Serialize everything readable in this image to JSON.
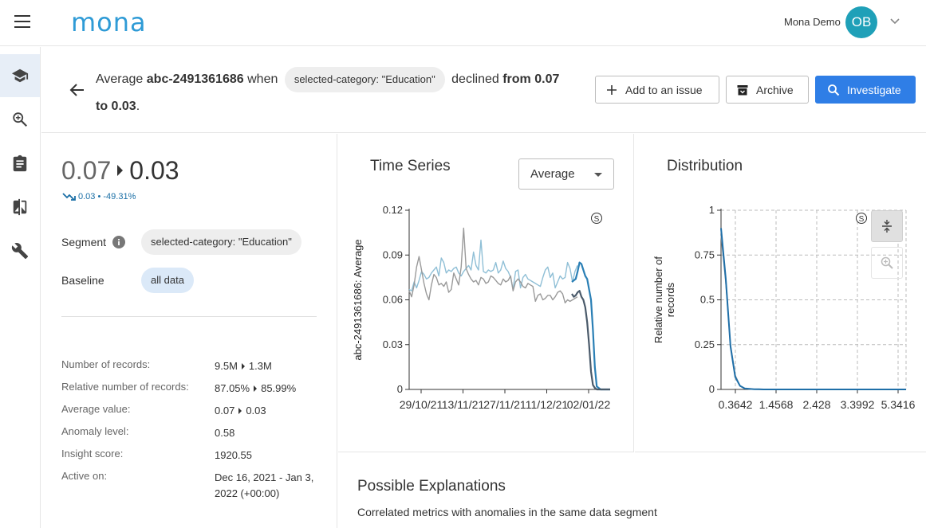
{
  "app": {
    "logo": "mona",
    "user_name": "Mona Demo",
    "user_initials": "OB"
  },
  "sidebar": {
    "items": [
      "insights",
      "search",
      "clipboard",
      "compare",
      "settings"
    ]
  },
  "header": {
    "text_prefix": "Average",
    "metric": "abc-2491361686",
    "text_when": "when",
    "segment_chip": "selected-category: \"Education\"",
    "text_declined": "declined",
    "text_from": "from 0.07",
    "text_to": "to 0.03",
    "text_period": ".",
    "buttons": {
      "add_issue": "Add to an issue",
      "archive": "Archive",
      "investigate": "Investigate"
    }
  },
  "summary": {
    "from_value": "0.07",
    "to_value": "0.03",
    "change_text": "0.03 • -49.31%",
    "segment_label": "Segment",
    "segment_value": "selected-category: \"Education\"",
    "baseline_label": "Baseline",
    "baseline_value": "all data",
    "stats": [
      {
        "label": "Number of records:",
        "from": "9.5M",
        "to": "1.3M"
      },
      {
        "label": "Relative number of records:",
        "from": "87.05%",
        "to": "85.99%"
      },
      {
        "label": "Average value:",
        "from": "0.07",
        "to": "0.03"
      },
      {
        "label": "Anomaly level:",
        "value": "0.58"
      },
      {
        "label": "Insight score:",
        "value": "1920.55"
      },
      {
        "label": "Active on:",
        "value": "Dec 16, 2021 - Jan 3, 2022 (+00:00)"
      }
    ]
  },
  "time_series": {
    "title": "Time Series",
    "select_value": "Average"
  },
  "distribution": {
    "title": "Distribution"
  },
  "explanations": {
    "title": "Possible Explanations",
    "subtitle": "Correlated metrics with anomalies in the same data segment"
  },
  "chart_data": [
    {
      "type": "line",
      "title": "Time Series",
      "xlabel": "",
      "ylabel": "abc-2491361686: Average",
      "ylim": [
        0,
        0.12
      ],
      "yticks": [
        "0",
        "0.03",
        "0.06",
        "0.09",
        "0.12"
      ],
      "xticks": [
        "29/10/21",
        "13/11/21",
        "27/11/21",
        "11/12/21",
        "02/01/22"
      ],
      "grid": false,
      "series": [
        {
          "color": "#8fbfd6",
          "values": [
            0.067,
            0.066,
            0.072,
            0.068,
            0.073,
            0.079,
            0.077,
            0.074,
            0.075,
            0.078,
            0.08,
            0.082,
            0.076,
            0.088,
            0.085,
            0.078,
            0.08,
            0.079,
            0.081,
            0.082,
            0.078,
            0.076,
            0.079,
            0.081,
            0.083,
            0.08,
            0.092,
            0.083,
            0.08,
            0.1,
            0.079,
            0.078,
            0.08,
            0.079,
            0.08,
            0.085,
            0.078,
            0.08,
            0.086,
            0.081,
            0.079,
            0.075,
            0.067,
            0.079,
            0.08,
            0.068,
            0.075,
            0.077,
            0.074,
            0.073,
            0.072,
            0.071,
            0.07,
            0.069,
            0.075,
            0.08,
            0.082,
            0.075,
            0.078,
            0.068,
            0.072,
            0.076,
            0.074,
            0.075,
            0.085,
            0.081,
            0.072,
            0.079,
            0.083
          ]
        },
        {
          "color": "#9a9a9a",
          "values": [
            0.066,
            0.062,
            0.07,
            0.082,
            0.089,
            0.08,
            0.071,
            0.064,
            0.06,
            0.07,
            0.077,
            0.075,
            0.07,
            0.071,
            0.069,
            0.072,
            0.065,
            0.067,
            0.078,
            0.074,
            0.07,
            0.082,
            0.108,
            0.081,
            0.077,
            0.074,
            0.072,
            0.073,
            0.07,
            0.075,
            0.074,
            0.071,
            0.072,
            0.076,
            0.075,
            0.073,
            0.071,
            0.07,
            0.074,
            0.072,
            0.073,
            0.076,
            0.066,
            0.072,
            0.074,
            0.072,
            0.069,
            0.068,
            0.071,
            0.07,
            0.069,
            0.059,
            0.063,
            0.064,
            0.06,
            0.061,
            0.063,
            0.063,
            0.06,
            0.062,
            0.065,
            0.066,
            0.064,
            0.058,
            0.06,
            0.059,
            0.06,
            0.061,
            0.062
          ]
        },
        {
          "color": "#2a7fb5",
          "values": [
            0.072,
            0.073,
            0.074,
            0.079,
            0.085,
            0.084,
            0.08,
            0.076,
            0.074,
            0.067,
            0.06,
            0.04,
            0.015,
            0.002,
            0.001,
            0,
            0,
            0,
            0,
            0,
            0
          ]
        },
        {
          "color": "#4a5a6a",
          "values": [
            0.064,
            0.062,
            0.063,
            0.065,
            0.066,
            0.062,
            0.06,
            0.055,
            0.045,
            0.03,
            0.012,
            0.003,
            0.001,
            0,
            0,
            0,
            0,
            0,
            0,
            0,
            0
          ]
        }
      ]
    },
    {
      "type": "line",
      "title": "Distribution",
      "xlabel": "",
      "ylabel": "Relative number of records",
      "ylim": [
        0,
        1
      ],
      "yticks": [
        "0",
        "0.25",
        "0.5",
        "0.75",
        "1"
      ],
      "xticks": [
        "0.3642",
        "1.4568",
        "2.428",
        "3.3992",
        "5.3416"
      ],
      "grid": true,
      "series": [
        {
          "color": "#9aa0a6",
          "values": [
            0.86,
            0.6,
            0.25,
            0.08,
            0.02,
            0.005,
            0.002,
            0.001,
            0,
            0,
            0,
            0,
            0,
            0,
            0,
            0,
            0,
            0,
            0,
            0,
            0,
            0,
            0,
            0,
            0,
            0,
            0,
            0,
            0,
            0,
            0,
            0,
            0,
            0,
            0,
            0,
            0,
            0,
            0,
            0
          ]
        },
        {
          "color": "#1f6fa8",
          "values": [
            0.9,
            0.62,
            0.24,
            0.07,
            0.02,
            0.006,
            0.003,
            0.001,
            0.001,
            0,
            0,
            0,
            0,
            0,
            0,
            0,
            0,
            0,
            0,
            0,
            0,
            0,
            0,
            0,
            0,
            0,
            0,
            0,
            0,
            0,
            0,
            0,
            0,
            0,
            0,
            0,
            0,
            0,
            0,
            0
          ]
        }
      ]
    }
  ]
}
